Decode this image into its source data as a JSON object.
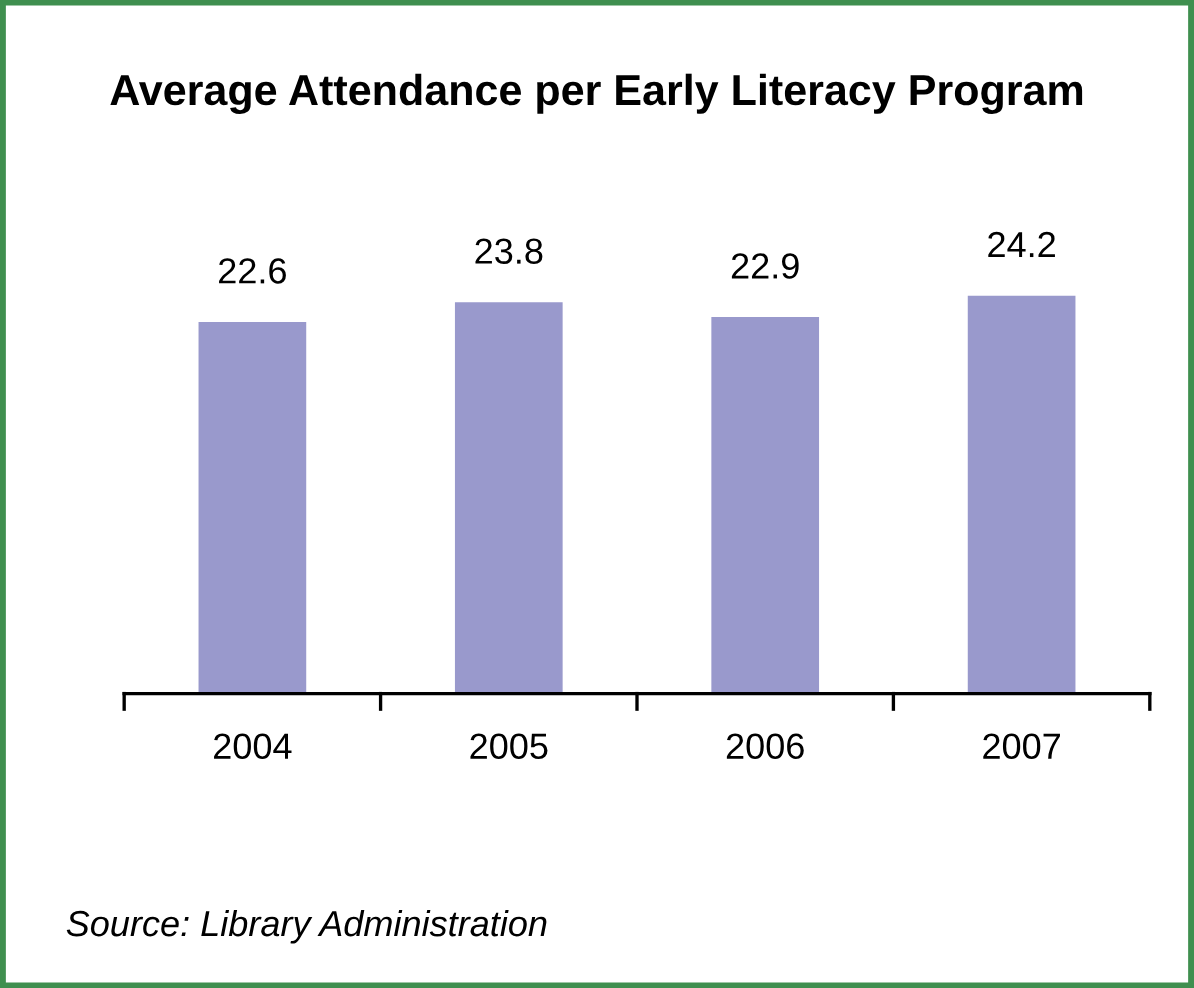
{
  "chart_data": {
    "type": "bar",
    "title": "Average Attendance per Early Literacy Program",
    "categories": [
      "2004",
      "2005",
      "2006",
      "2007"
    ],
    "values": [
      22.6,
      23.8,
      22.9,
      24.2
    ],
    "color": "#9999cc",
    "data_labels": true,
    "grid": false,
    "legend": false,
    "annotations": [
      "Source: Library Administration"
    ]
  }
}
